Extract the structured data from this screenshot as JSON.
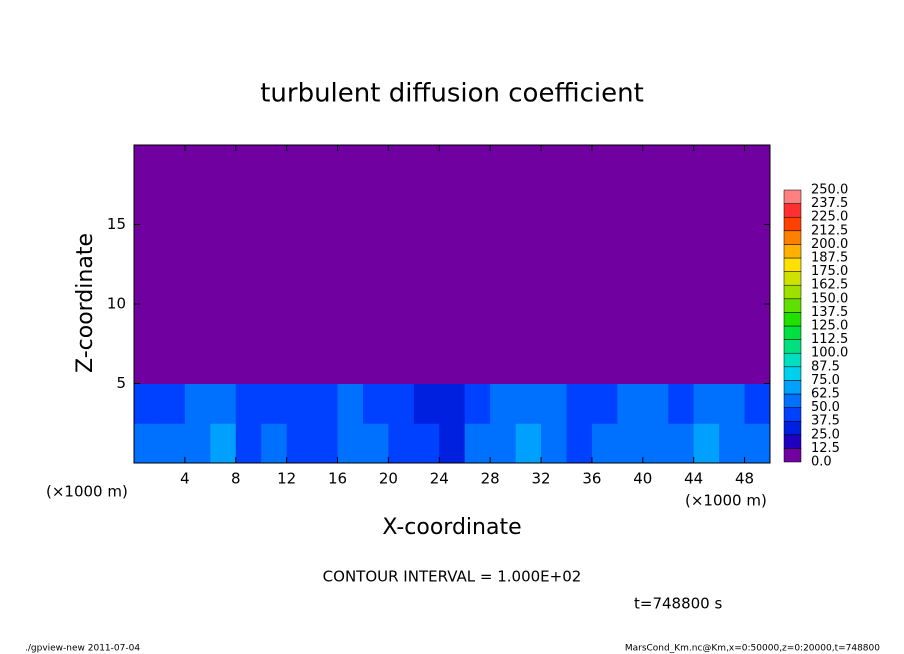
{
  "chart_data": {
    "type": "heatmap",
    "title": "turbulent diffusion coefficient",
    "xlabel": "X-coordinate",
    "ylabel": "Z-coordinate",
    "x_unit": "(×1000 m)",
    "x_unit_right": "(×1000 m)",
    "note": "CONTOUR INTERVAL = 1.000E+02",
    "time": "t=748800 s",
    "footer_left": "./gpview-new   2011-07-04",
    "footer_right": "MarsCond_Km.nc@Km,x=0:50000,z=0:20000,t=748800",
    "xlim": [
      0,
      50
    ],
    "ylim": [
      0,
      20
    ],
    "xticks": [
      4,
      8,
      12,
      16,
      20,
      24,
      28,
      32,
      36,
      40,
      44,
      48
    ],
    "yticks": [
      5,
      10,
      15
    ],
    "levels": [
      {
        "value": 0,
        "label": "0.0"
      },
      {
        "value": 12.5,
        "label": "12.5"
      },
      {
        "value": 25,
        "label": "25.0"
      },
      {
        "value": 37.5,
        "label": "37.5"
      },
      {
        "value": 50,
        "label": "50.0"
      },
      {
        "value": 62.5,
        "label": "62.5"
      },
      {
        "value": 75,
        "label": "75.0"
      },
      {
        "value": 87.5,
        "label": "87.5"
      },
      {
        "value": 100,
        "label": "100.0"
      },
      {
        "value": 112.5,
        "label": "112.5"
      },
      {
        "value": 125,
        "label": "125.0"
      },
      {
        "value": 137.5,
        "label": "137.5"
      },
      {
        "value": 150,
        "label": "150.0"
      },
      {
        "value": 162.5,
        "label": "162.5"
      },
      {
        "value": 175,
        "label": "175.0"
      },
      {
        "value": 187.5,
        "label": "187.5"
      },
      {
        "value": 200,
        "label": "200.0"
      },
      {
        "value": 212.5,
        "label": "212.5"
      },
      {
        "value": 225,
        "label": "225.0"
      },
      {
        "value": 237.5,
        "label": "237.5"
      },
      {
        "value": 250,
        "label": "250.0"
      }
    ],
    "colors": [
      "#7000a0",
      "#2000c0",
      "#0020e0",
      "#0040ff",
      "#0070ff",
      "#00a0ff",
      "#00d0f0",
      "#00e0c0",
      "#00e080",
      "#00e040",
      "#20e000",
      "#60e000",
      "#a0e000",
      "#d0e000",
      "#ffe000",
      "#ffb000",
      "#ff8000",
      "#ff4000",
      "#ff3030",
      "#ff8080"
    ],
    "z": [
      [
        55,
        50,
        60,
        65,
        45,
        50,
        40,
        45,
        60,
        50,
        45,
        40,
        35,
        50,
        55,
        65,
        60,
        45,
        50,
        60,
        55,
        50,
        65,
        55,
        50
      ],
      [
        40,
        45,
        55,
        60,
        40,
        45,
        45,
        40,
        50,
        45,
        40,
        35,
        30,
        45,
        55,
        60,
        50,
        40,
        45,
        55,
        50,
        45,
        55,
        50,
        45
      ],
      [
        5,
        3,
        8,
        6,
        4,
        5,
        3,
        4,
        5,
        3,
        4,
        3,
        2,
        4,
        5,
        4,
        3,
        5,
        4,
        6,
        5,
        4,
        6,
        8,
        5
      ],
      [
        2,
        3,
        4,
        3,
        2,
        3,
        2,
        2,
        3,
        2,
        3,
        2,
        3,
        2,
        3,
        2,
        3,
        2,
        3,
        3,
        2,
        3,
        4,
        3,
        2
      ],
      [
        2,
        3,
        2,
        3,
        2,
        2,
        3,
        2,
        2,
        3,
        2,
        2,
        3,
        3,
        2,
        2,
        3,
        2,
        3,
        2,
        3,
        3,
        2,
        3,
        2
      ],
      [
        0,
        0,
        1,
        0,
        0,
        0,
        0,
        0,
        0,
        1,
        0,
        0,
        0,
        1,
        1,
        0,
        0,
        0,
        1,
        0,
        0,
        0,
        0,
        0,
        0
      ],
      [
        0,
        0,
        0,
        0,
        0,
        0,
        0,
        0,
        0,
        0,
        0,
        0,
        0,
        0,
        0,
        0,
        0,
        0,
        0,
        0,
        0,
        0,
        0,
        0,
        0
      ],
      [
        0,
        0,
        0,
        0,
        0,
        0,
        0,
        0,
        0,
        0,
        0,
        0,
        0,
        0,
        0,
        0,
        0,
        0,
        0,
        0,
        0,
        0,
        0,
        0,
        0
      ]
    ]
  }
}
